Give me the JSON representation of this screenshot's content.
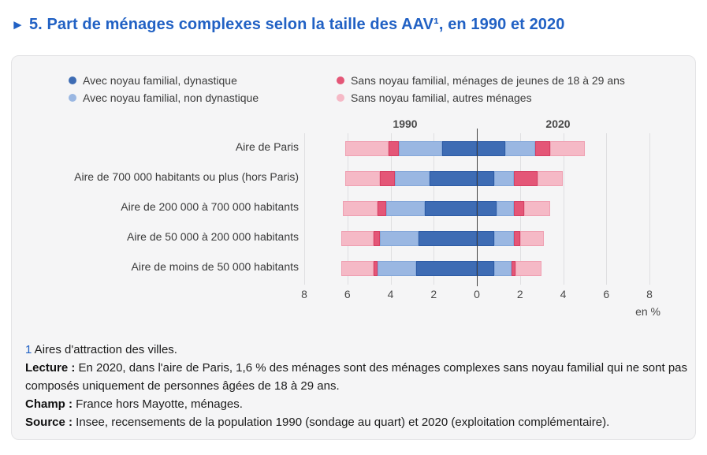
{
  "title": {
    "arrow": "►",
    "text": "5. Part de ménages complexes selon la taille des AAV¹, en 1990 et 2020"
  },
  "colors": {
    "title_blue": "#2161c4",
    "card_background": "#f5f5f6",
    "gridline": "#dfdfe1",
    "zero_axis": "#404040"
  },
  "chart_data": {
    "type": "bar",
    "variant": "diverging-stacked-horizontal",
    "unit_label": "en %",
    "group_labels": {
      "left": "1990",
      "right": "2020"
    },
    "axis": {
      "max": 8,
      "tick_step": 2,
      "tick_labels": [
        "8",
        "6",
        "4",
        "2",
        "0",
        "2",
        "4",
        "6",
        "8"
      ]
    },
    "legend_position": "top",
    "grid": true,
    "stack_order": "from zero axis outward: dynastique, non dynastique, jeunes 18-29, autres",
    "series": [
      {
        "name": "Avec noyau familial, dynastique",
        "color": "#3e6cb4",
        "border": "#2e5ca6"
      },
      {
        "name": "Avec noyau familial, non dynastique",
        "color": "#9ab7e2",
        "border": "#84a7d9"
      },
      {
        "name": "Sans noyau familial, ménages de jeunes de 18 à 29 ans",
        "color": "#e45677",
        "border": "#d64064"
      },
      {
        "name": "Sans noyau familial, autres ménages",
        "color": "#f5b9c6",
        "border": "#efa0b2"
      }
    ],
    "rows": [
      {
        "category": "Aire de Paris",
        "values_1990": [
          1.6,
          2.0,
          0.5,
          2.0
        ],
        "values_2020": [
          1.3,
          1.4,
          0.7,
          1.6
        ]
      },
      {
        "category": "Aire de 700 000 habitants ou plus (hors Paris)",
        "values_1990": [
          2.2,
          1.6,
          0.7,
          1.6
        ],
        "values_2020": [
          0.8,
          0.9,
          1.1,
          1.2
        ]
      },
      {
        "category": "Aire de 200 000 à 700 000 habitants",
        "values_1990": [
          2.4,
          1.8,
          0.4,
          1.6
        ],
        "values_2020": [
          0.9,
          0.8,
          0.5,
          1.2
        ]
      },
      {
        "category": "Aire de 50 000 à 200 000 habitants",
        "values_1990": [
          2.7,
          1.8,
          0.3,
          1.5
        ],
        "values_2020": [
          0.8,
          0.9,
          0.3,
          1.1
        ]
      },
      {
        "category": "Aire de moins de 50 000 habitants",
        "values_1990": [
          2.8,
          1.8,
          0.2,
          1.5
        ],
        "values_2020": [
          0.8,
          0.8,
          0.2,
          1.2
        ]
      }
    ]
  },
  "notes": {
    "footnote": {
      "marker": "1",
      "text": " Aires d'attraction des villes."
    },
    "lecture": {
      "label": "Lecture :",
      "text": " En 2020, dans l'aire de Paris, 1,6 % des ménages sont des ménages complexes sans noyau familial qui ne sont pas composés uniquement de personnes âgées de 18 à 29 ans."
    },
    "champ": {
      "label": "Champ :",
      "text": " France hors Mayotte, ménages."
    },
    "source": {
      "label": "Source :",
      "text": " Insee, recensements de la population 1990 (sondage au quart) et 2020 (exploitation complémentaire)."
    }
  }
}
